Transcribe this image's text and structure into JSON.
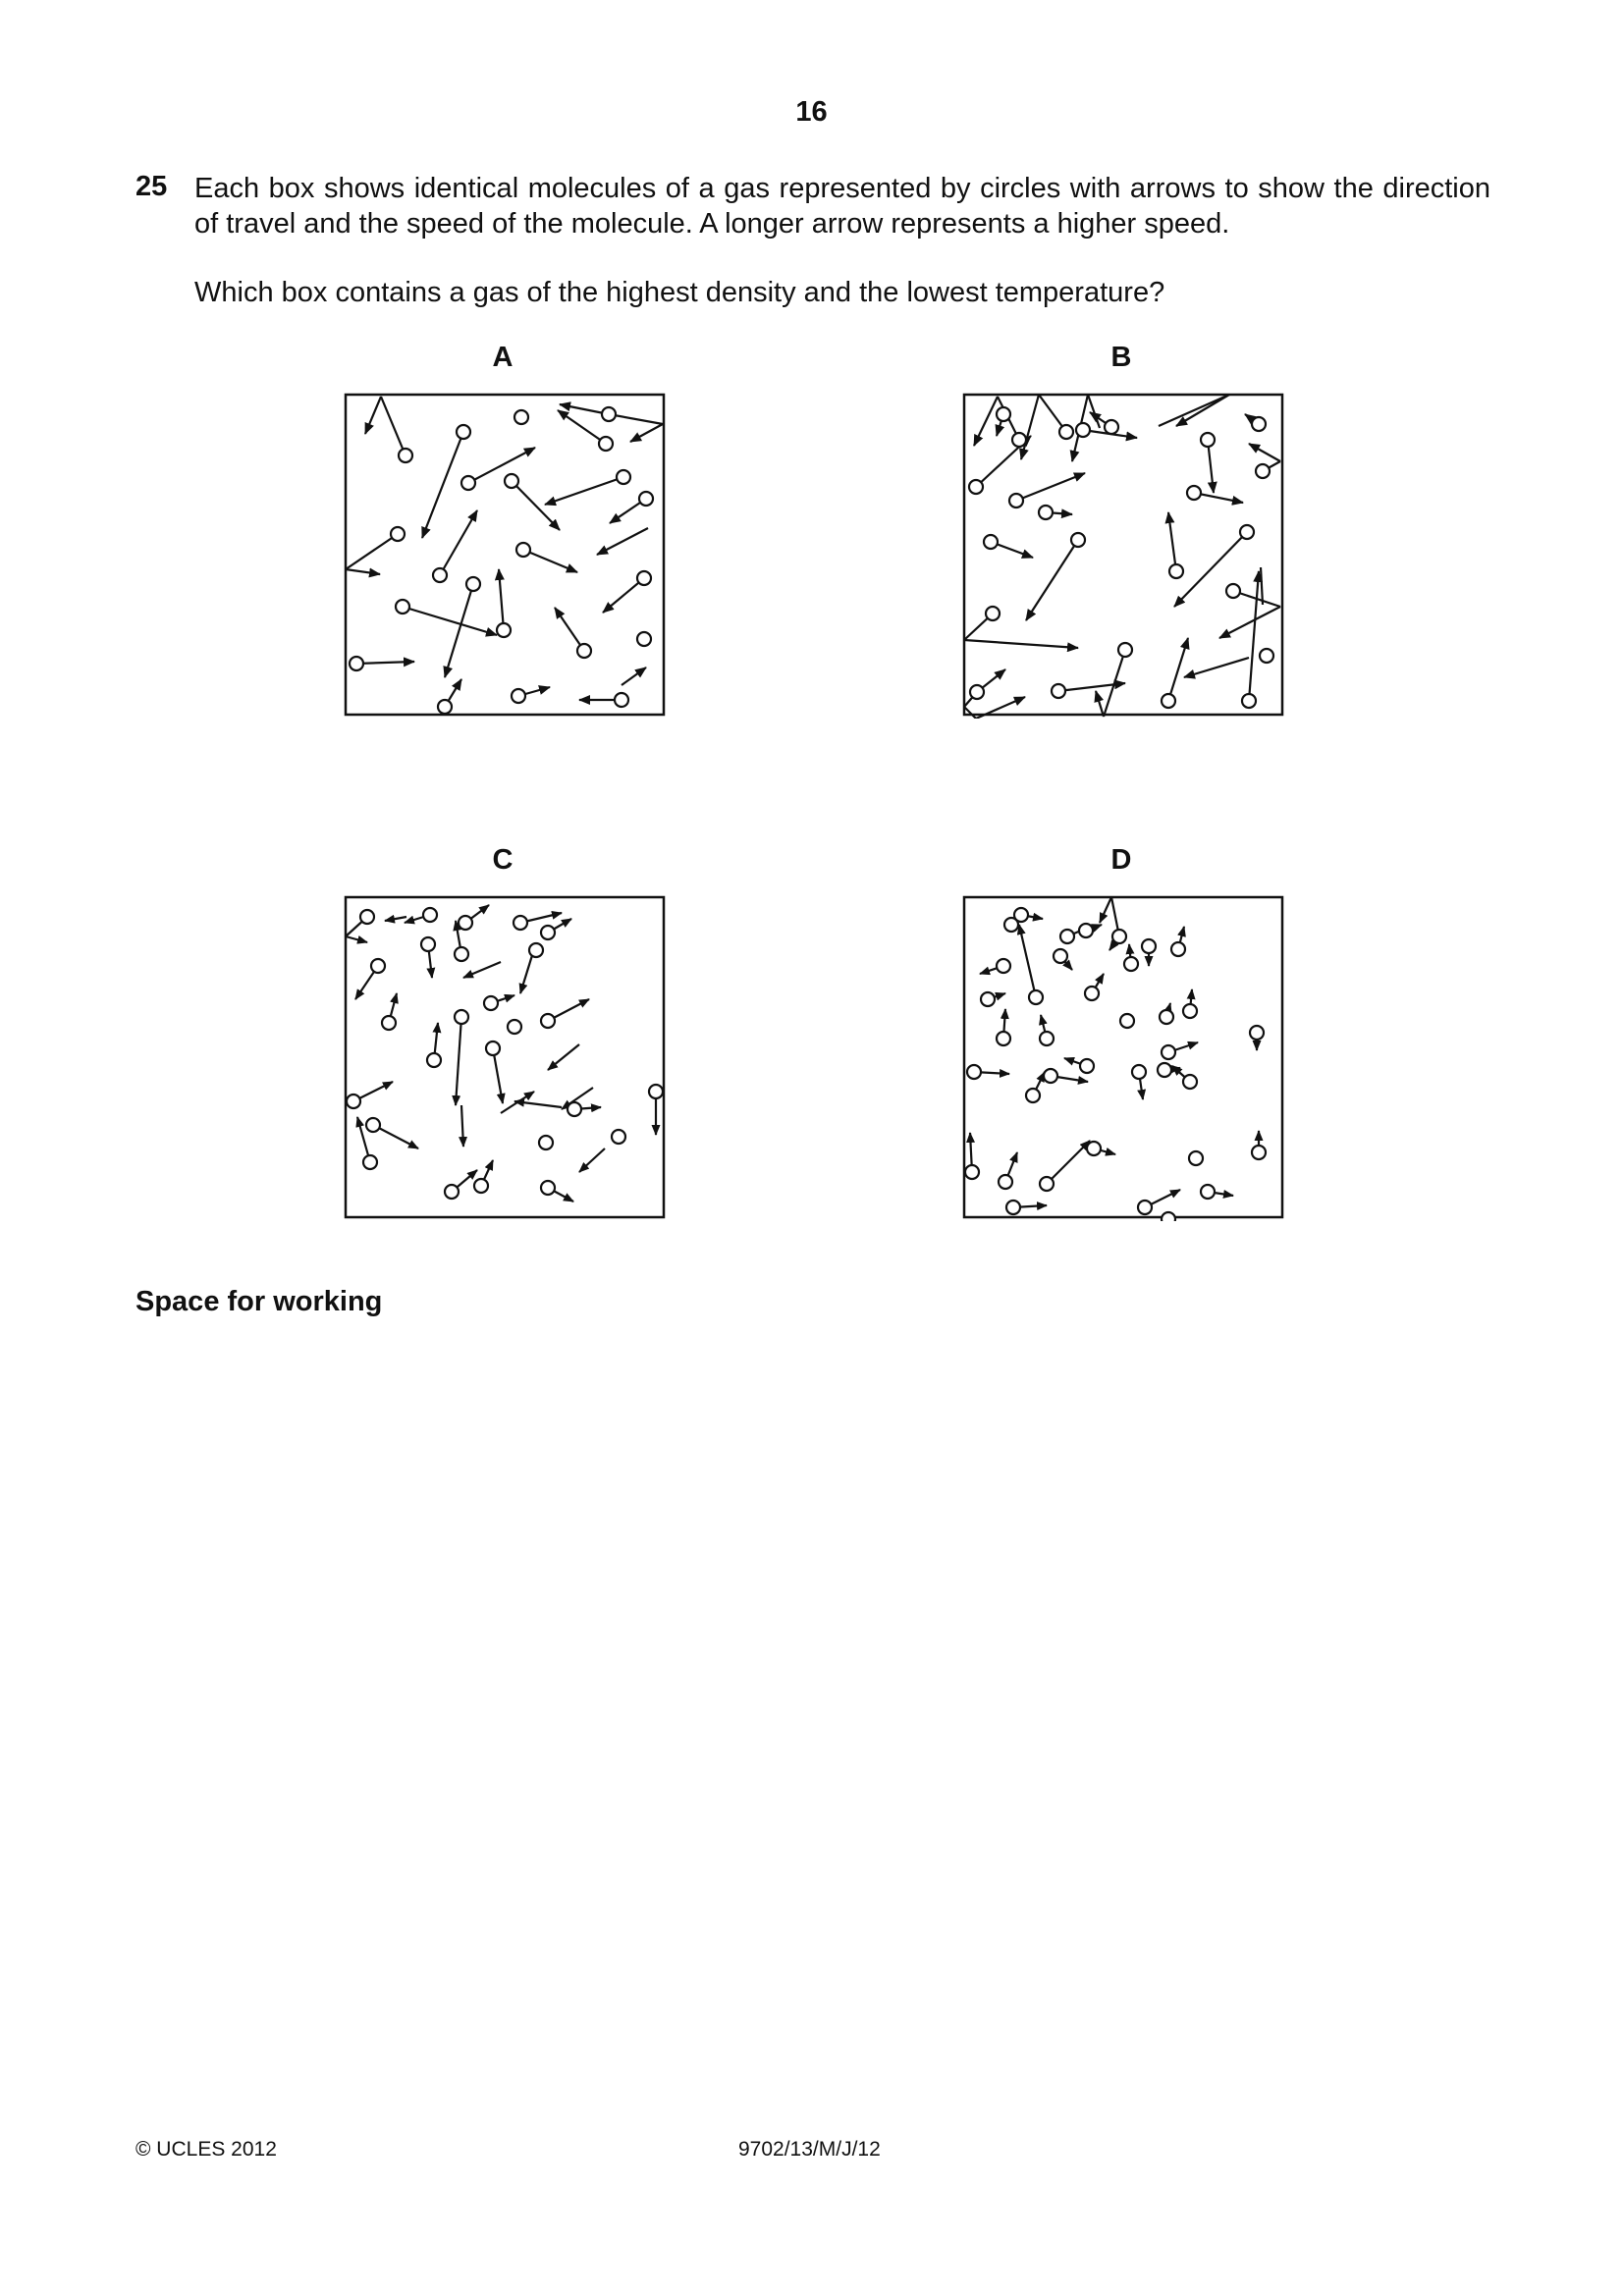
{
  "page_number": "16",
  "question": {
    "number": "25",
    "text": "Each box shows identical molecules of a gas represented by circles with arrows to show the direction of travel and the speed of the molecule. A longer arrow represents a higher speed.",
    "prompt": "Which box contains a gas of the highest density and the lowest temperature?"
  },
  "boxes": {
    "a": {
      "label": "A"
    },
    "b": {
      "label": "B"
    },
    "c": {
      "label": "C"
    },
    "d": {
      "label": "D"
    }
  },
  "working_label": "Space for working",
  "footer": {
    "copyright": "© UCLES 2012",
    "code": "9702/13/M/J/12"
  }
}
